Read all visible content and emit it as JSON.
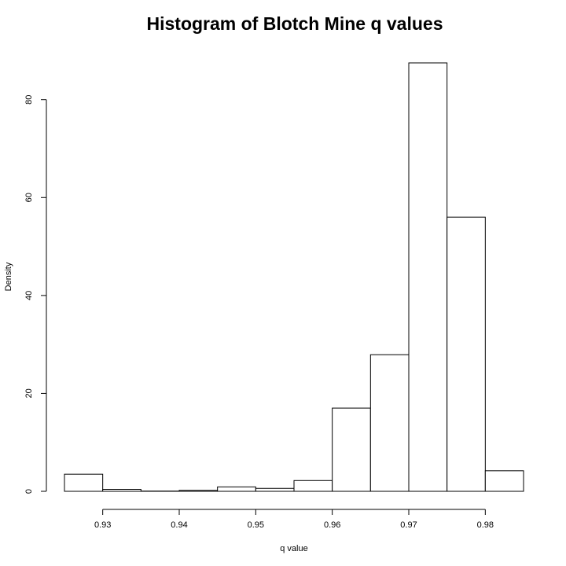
{
  "chart_data": {
    "type": "bar",
    "title": "Histogram of Blotch Mine q values",
    "xlabel": "q value",
    "ylabel": "Density",
    "bin_edges": [
      0.925,
      0.93,
      0.935,
      0.94,
      0.945,
      0.95,
      0.955,
      0.96,
      0.965,
      0.97,
      0.975,
      0.98,
      0.985
    ],
    "values": [
      3.5,
      0.4,
      0.05,
      0.2,
      0.9,
      0.6,
      2.2,
      17.0,
      27.9,
      87.5,
      56.0,
      4.2
    ],
    "x_ticks": [
      0.93,
      0.94,
      0.95,
      0.96,
      0.97,
      0.98
    ],
    "x_tick_labels": [
      "0.93",
      "0.94",
      "0.95",
      "0.96",
      "0.97",
      "0.98"
    ],
    "y_ticks": [
      0,
      20,
      40,
      60,
      80
    ],
    "y_tick_labels": [
      "0",
      "20",
      "40",
      "60",
      "80"
    ],
    "xlim": [
      0.925,
      0.985
    ],
    "ylim": [
      0,
      87.5
    ],
    "grid": false,
    "bar_fill": "#ffffff",
    "bar_stroke": "#000000"
  }
}
